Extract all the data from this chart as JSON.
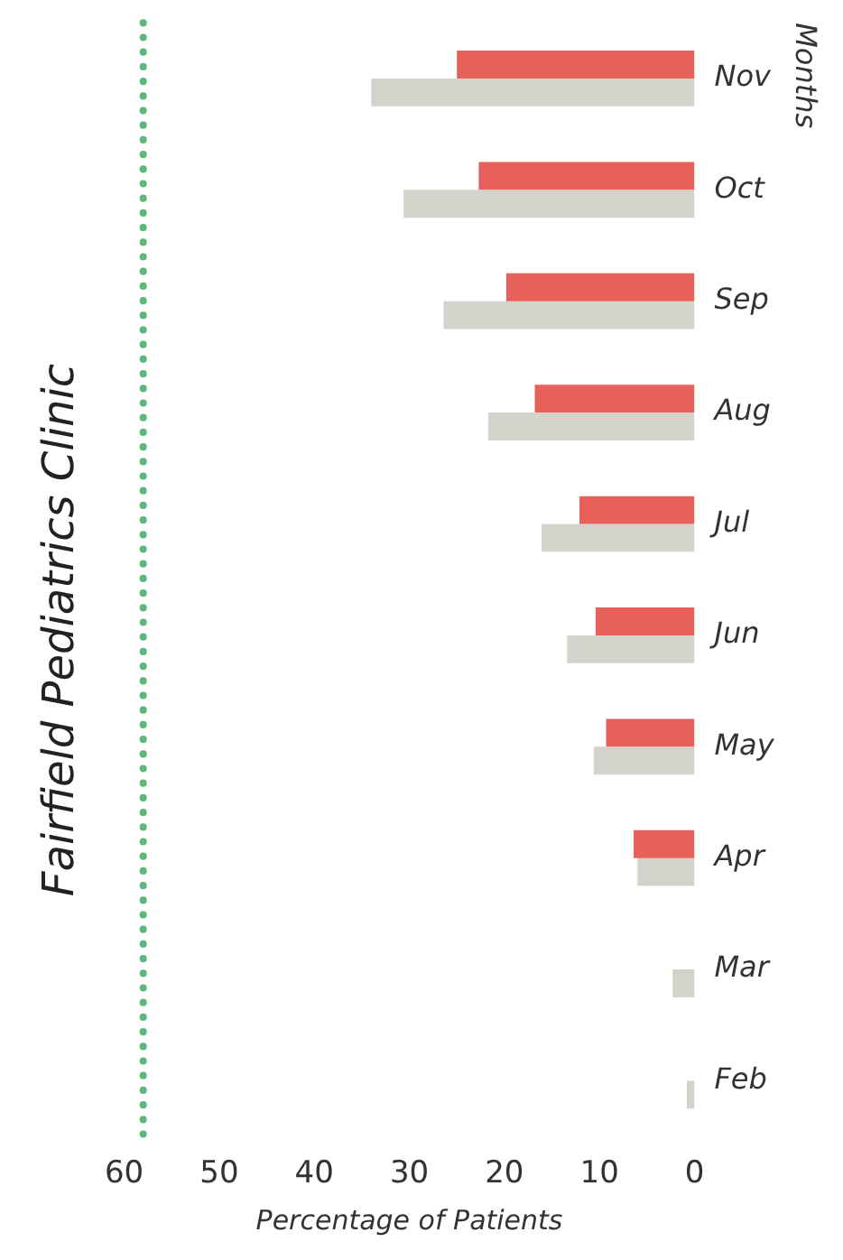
{
  "chart_data": {
    "type": "bar",
    "orientation": "horizontal",
    "title": "Fairfield Pediatrics Clinic",
    "xlabel": "Percentage of Patients",
    "ylabel": "Months",
    "categories": [
      "Nov",
      "Oct",
      "Sep",
      "Aug",
      "Jul",
      "Jun",
      "May",
      "Apr",
      "Mar",
      "Feb"
    ],
    "series": [
      {
        "color": "#e8605a",
        "values": [
          25,
          22.7,
          19.8,
          16.8,
          12.1,
          10.4,
          9.3,
          6.4,
          0,
          0
        ]
      },
      {
        "color": "#d3d3cb",
        "values": [
          34,
          30.6,
          26.4,
          21.7,
          16.1,
          13.4,
          10.6,
          6,
          2.3,
          0.8
        ]
      }
    ],
    "xlim": [
      60,
      0
    ],
    "xticks": [
      60,
      50,
      40,
      30,
      20,
      10,
      0
    ],
    "grid": false,
    "legend": false,
    "ref_lines": [
      {
        "axis": "x",
        "value": 58,
        "color": "#5cb87a",
        "line_style": "dotted"
      }
    ]
  }
}
